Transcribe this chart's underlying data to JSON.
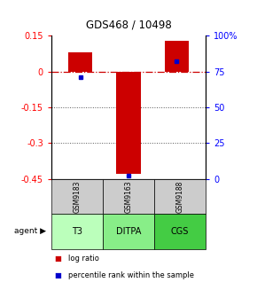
{
  "title": "GDS468 / 10498",
  "samples": [
    "GSM9183",
    "GSM9163",
    "GSM9188"
  ],
  "agents": [
    "T3",
    "DITPA",
    "CGS"
  ],
  "log_ratios": [
    0.08,
    -0.43,
    0.13
  ],
  "percentile_ranks": [
    71,
    2,
    82
  ],
  "ylim": [
    -0.45,
    0.15
  ],
  "yticks_left": [
    0.15,
    0.0,
    -0.15,
    -0.3,
    -0.45
  ],
  "yticks_left_labels": [
    "0.15",
    "0",
    "-0.15",
    "-0.3",
    "-0.45"
  ],
  "yticks_right_vals": [
    "100%",
    "75",
    "50",
    "25",
    "0"
  ],
  "yticks_right_pos": [
    0.15,
    0.0,
    -0.15,
    -0.3,
    -0.45
  ],
  "bar_color": "#cc0000",
  "pct_color": "#0000cc",
  "zero_line_color": "#cc0000",
  "grid_color": "#555555",
  "agent_colors": [
    "#bbffbb",
    "#88ee88",
    "#44cc44"
  ],
  "sample_bg": "#cccccc",
  "bar_width": 0.5
}
